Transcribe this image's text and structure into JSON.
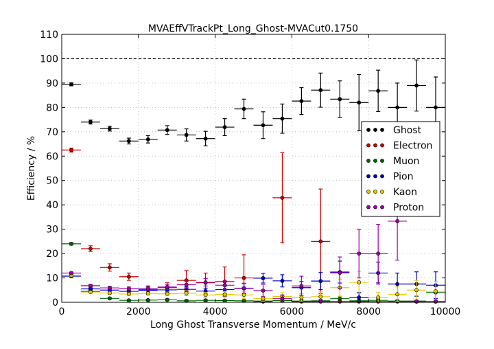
{
  "chart_data": {
    "type": "scatter",
    "title": "MVAEffVTrackPt_Long_Ghost-MVACut0.1750",
    "xlabel": "Long Ghost Transverse Momentum / MeV/c",
    "ylabel": "Efficiency / %",
    "xlim": [
      0,
      10000
    ],
    "ylim": [
      0,
      110
    ],
    "xticks": [
      "0",
      "2000",
      "4000",
      "6000",
      "8000",
      "10000"
    ],
    "yticks": [
      "0",
      "10",
      "20",
      "30",
      "40",
      "50",
      "60",
      "70",
      "80",
      "90",
      "100",
      "110"
    ],
    "grid": true,
    "reference_line": 100,
    "legend_position": "right",
    "x": [
      250,
      750,
      1250,
      1750,
      2250,
      2750,
      3250,
      3750,
      4250,
      4750,
      5250,
      5750,
      6250,
      6750,
      7250,
      7750,
      8250,
      8750,
      9250,
      9750
    ],
    "bin_half_width": 250,
    "series": [
      {
        "name": "Ghost",
        "color": "#000000",
        "values": [
          89.5,
          74.0,
          71.3,
          66.2,
          66.9,
          70.7,
          68.7,
          67.2,
          71.9,
          79.4,
          72.7,
          75.4,
          82.6,
          87.1,
          83.4,
          82.0,
          86.8,
          80.0,
          89.0,
          80.0
        ],
        "errors": [
          0.6,
          0.8,
          1.0,
          1.2,
          1.5,
          1.8,
          2.5,
          3.0,
          3.5,
          4.0,
          5.5,
          6.0,
          5.5,
          7.0,
          7.5,
          11.5,
          8.5,
          10.0,
          10.5,
          12.5
        ]
      },
      {
        "name": "Electron",
        "color": "#cc0000",
        "values": [
          62.5,
          22.0,
          14.3,
          10.5,
          5.2,
          6.0,
          9.0,
          8.0,
          8.5,
          10.0,
          0.3,
          42.9,
          0.3,
          25.0,
          0.3,
          0.3,
          0.3,
          0.3,
          0.3,
          0.3
        ],
        "errors": [
          0.8,
          1.2,
          1.5,
          1.5,
          1.5,
          2.0,
          4.0,
          4.0,
          6.0,
          9.5,
          0.3,
          18.5,
          0.3,
          21.5,
          0.3,
          0.3,
          0.3,
          0.3,
          0.3,
          0.3
        ]
      },
      {
        "name": "Muon",
        "color": "#006400",
        "values": [
          24.0,
          4.5,
          1.6,
          0.8,
          0.9,
          1.0,
          0.6,
          0.8,
          0.7,
          0.6,
          0.5,
          0.7,
          0.5,
          0.6,
          1.5,
          0.6,
          0.8,
          0.5,
          0.5,
          4.0
        ],
        "errors": [
          0.5,
          0.3,
          0.3,
          0.3,
          0.3,
          0.4,
          0.4,
          0.4,
          0.4,
          0.4,
          0.4,
          0.5,
          0.5,
          0.5,
          1.0,
          0.5,
          0.6,
          0.4,
          0.4,
          2.5
        ]
      },
      {
        "name": "Pion",
        "color": "#0000cc",
        "values": [
          10.7,
          5.5,
          5.0,
          4.5,
          4.9,
          5.1,
          5.3,
          4.6,
          5.2,
          5.7,
          9.9,
          8.8,
          6.0,
          8.7,
          12.4,
          2.0,
          12.0,
          7.5,
          7.5,
          7.0
        ],
        "errors": [
          0.4,
          0.4,
          0.5,
          0.5,
          0.6,
          0.7,
          1.0,
          1.2,
          1.5,
          2.0,
          2.0,
          2.5,
          2.5,
          3.5,
          4.5,
          2.0,
          4.5,
          4.5,
          5.0,
          5.5
        ]
      },
      {
        "name": "Kaon",
        "color": "#e6c800",
        "values": [
          11.0,
          4.2,
          3.8,
          3.4,
          3.6,
          3.5,
          3.7,
          3.0,
          3.2,
          3.0,
          1.5,
          2.4,
          2.0,
          2.3,
          6.0,
          8.2,
          2.0,
          3.3,
          5.0,
          4.5
        ],
        "errors": [
          0.4,
          0.4,
          0.5,
          0.5,
          0.6,
          0.7,
          1.0,
          1.0,
          1.2,
          1.5,
          1.0,
          1.5,
          1.5,
          2.0,
          3.5,
          4.5,
          2.0,
          3.0,
          4.0,
          4.0
        ]
      },
      {
        "name": "Proton",
        "color": "#a000a0",
        "values": [
          12.0,
          6.8,
          5.9,
          5.6,
          5.7,
          6.3,
          7.2,
          8.2,
          7.0,
          5.8,
          4.8,
          1.5,
          6.7,
          0.3,
          12.1,
          20.0,
          20.0,
          33.3,
          0.3,
          0.3
        ],
        "errors": [
          0.4,
          0.5,
          0.6,
          0.7,
          0.8,
          1.0,
          1.3,
          1.5,
          1.8,
          2.0,
          2.5,
          1.5,
          4.0,
          0.3,
          6.5,
          10.0,
          12.0,
          16.0,
          0.3,
          0.3
        ]
      }
    ]
  }
}
